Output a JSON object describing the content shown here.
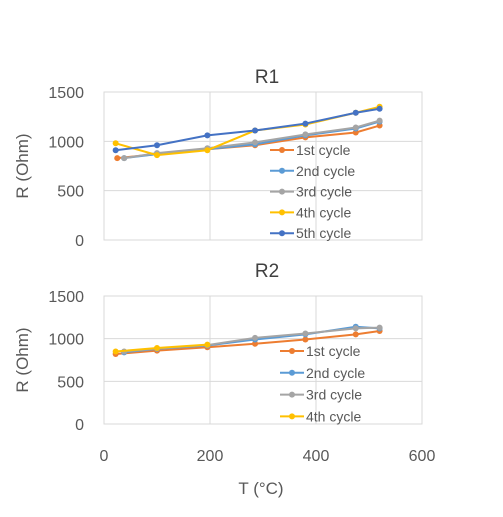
{
  "chart_data": [
    {
      "type": "line",
      "title": "R1",
      "xlabel": "",
      "ylabel": "R (Ohm)",
      "xlim": [
        0,
        600
      ],
      "ylim": [
        0,
        1500
      ],
      "yticks": [
        "0",
        "500",
        "1000",
        "1500"
      ],
      "grid": true,
      "legend_position": "bottom-right",
      "series": [
        {
          "name": "1st cycle",
          "color": "#ED7D31",
          "x": [
            25,
            100,
            195,
            285,
            380,
            475,
            520
          ],
          "y": [
            830,
            870,
            920,
            960,
            1040,
            1090,
            1160
          ]
        },
        {
          "name": "2nd cycle",
          "color": "#5B9BD5",
          "x": [
            38,
            100,
            195,
            285,
            380,
            475,
            520
          ],
          "y": [
            830,
            870,
            920,
            970,
            1060,
            1130,
            1200
          ]
        },
        {
          "name": "3rd cycle",
          "color": "#A5A5A5",
          "x": [
            38,
            100,
            195,
            285,
            380,
            475,
            520
          ],
          "y": [
            830,
            880,
            930,
            990,
            1070,
            1140,
            1210
          ]
        },
        {
          "name": "4th cycle",
          "color": "#FFC000",
          "x": [
            22,
            100,
            195,
            285,
            380,
            475,
            520
          ],
          "y": [
            980,
            860,
            910,
            1110,
            1170,
            1290,
            1350
          ]
        },
        {
          "name": "5th cycle",
          "color": "#4472C4",
          "x": [
            22,
            100,
            195,
            285,
            380,
            475,
            520
          ],
          "y": [
            910,
            960,
            1060,
            1110,
            1180,
            1290,
            1330
          ]
        }
      ]
    },
    {
      "type": "line",
      "title": "R2",
      "xlabel": "T (°C)",
      "ylabel": "R (Ohm)",
      "xlim": [
        0,
        600
      ],
      "ylim": [
        0,
        1500
      ],
      "xticks": [
        "0",
        "200",
        "400",
        "600"
      ],
      "yticks": [
        "0",
        "500",
        "1000",
        "1500"
      ],
      "grid": true,
      "legend_position": "bottom-right",
      "series": [
        {
          "name": "1st cycle",
          "color": "#ED7D31",
          "x": [
            22,
            100,
            195,
            285,
            380,
            475,
            520
          ],
          "y": [
            820,
            860,
            900,
            940,
            990,
            1050,
            1090
          ]
        },
        {
          "name": "2nd cycle",
          "color": "#5B9BD5",
          "x": [
            38,
            100,
            195,
            285,
            380,
            475,
            520
          ],
          "y": [
            840,
            880,
            920,
            990,
            1050,
            1140,
            1120
          ]
        },
        {
          "name": "3rd cycle",
          "color": "#A5A5A5",
          "x": [
            38,
            100,
            195,
            285,
            380,
            475,
            520
          ],
          "y": [
            850,
            885,
            925,
            1010,
            1060,
            1120,
            1130
          ]
        },
        {
          "name": "4th cycle",
          "color": "#FFC000",
          "x": [
            22,
            100,
            195
          ],
          "y": [
            850,
            890,
            930
          ]
        }
      ]
    }
  ]
}
